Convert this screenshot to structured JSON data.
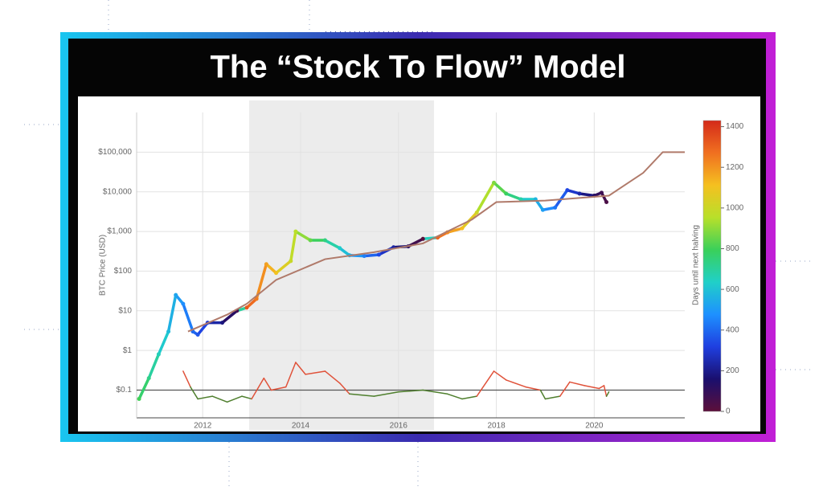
{
  "chart_data": {
    "type": "line",
    "title": "The “Stock To Flow” Model",
    "y_label": "BTC Price (USD)",
    "colorbar_label": "Days until next halving",
    "y_scale": "log",
    "grid": true,
    "xlim": [
      2010.65,
      2021.85
    ],
    "xticks": [
      2012,
      2014,
      2016,
      2018,
      2020
    ],
    "ylim": [
      0.02,
      1000000
    ],
    "yticks": [
      {
        "value": 0.1,
        "label": "$0.1"
      },
      {
        "value": 1,
        "label": "$1"
      },
      {
        "value": 10,
        "label": "$10"
      },
      {
        "value": 100,
        "label": "$100"
      },
      {
        "value": 1000,
        "label": "$1,000"
      },
      {
        "value": 10000,
        "label": "$10,000"
      },
      {
        "value": 100000,
        "label": "$100,000"
      }
    ],
    "zlim": [
      0,
      1430
    ],
    "zticks": [
      0,
      200,
      400,
      600,
      800,
      1000,
      1200,
      1400
    ],
    "colorscale": [
      "#5c0f3a",
      "#1a0f6e",
      "#1f3fe0",
      "#1e90ff",
      "#20d0c8",
      "#3ad05a",
      "#b8e02a",
      "#f5c020",
      "#f07020",
      "#d42a1a"
    ],
    "hline": 0.1,
    "hline_color": "#555555",
    "series": [
      {
        "x": [
          2010.7,
          2010.9,
          2011.1,
          2011.3,
          2011.45,
          2011.6,
          2011.8,
          2011.9,
          2012.1,
          2012.4,
          2012.7,
          2012.9,
          2013.1,
          2013.3,
          2013.5,
          2013.8,
          2013.9,
          2014.2,
          2014.5,
          2014.8,
          2015.0,
          2015.3,
          2015.6,
          2015.9,
          2016.2,
          2016.5,
          2016.8,
          2017.0,
          2017.3,
          2017.6,
          2017.95,
          2018.2,
          2018.5,
          2018.8,
          2018.95,
          2019.2,
          2019.45,
          2019.7,
          2020.0,
          2020.15,
          2020.25
        ],
        "values": [
          0.06,
          0.2,
          0.8,
          3,
          25,
          15,
          3,
          2.5,
          5,
          5,
          10,
          12,
          20,
          150,
          90,
          180,
          1000,
          600,
          600,
          380,
          250,
          240,
          260,
          400,
          420,
          650,
          700,
          950,
          1200,
          3000,
          17000,
          9000,
          6500,
          6500,
          3500,
          4000,
          11000,
          9000,
          8000,
          9500,
          5500
        ],
        "color_values": [
          803,
          730,
          657,
          584,
          529,
          475,
          402,
          365,
          292,
          183,
          73,
          1321,
          1248,
          1175,
          1102,
          993,
          956,
          847,
          737,
          628,
          555,
          445,
          336,
          226,
          117,
          7,
          1299,
          1226,
          1117,
          1007,
          880,
          788,
          679,
          569,
          515,
          423,
          332,
          241,
          131,
          77,
          40
        ]
      },
      {
        "color": "#b07a6a",
        "x": [
          2011.7,
          2012.5,
          2012.9,
          2013.5,
          2014.5,
          2015.5,
          2016.5,
          2017.5,
          2018.0,
          2019.0,
          2020.3,
          2021.0,
          2021.4,
          2021.85
        ],
        "values": [
          3,
          8,
          15,
          60,
          200,
          300,
          500,
          2000,
          5500,
          6000,
          8000,
          30000,
          100000,
          100000
        ]
      },
      {
        "color_above": "#e0523a",
        "color_below": "#4f7f2e",
        "x": [
          2011.6,
          2011.75,
          2011.9,
          2012.2,
          2012.5,
          2012.8,
          2013.0,
          2013.25,
          2013.4,
          2013.7,
          2013.9,
          2014.1,
          2014.5,
          2014.8,
          2015.0,
          2015.5,
          2016.0,
          2016.5,
          2017.0,
          2017.3,
          2017.6,
          2017.95,
          2018.2,
          2018.6,
          2018.9,
          2019.0,
          2019.3,
          2019.5,
          2019.8,
          2020.1,
          2020.2,
          2020.25,
          2020.3
        ],
        "values": [
          0.3,
          0.12,
          0.06,
          0.07,
          0.05,
          0.07,
          0.06,
          0.2,
          0.1,
          0.12,
          0.5,
          0.25,
          0.3,
          0.15,
          0.08,
          0.07,
          0.09,
          0.1,
          0.08,
          0.06,
          0.07,
          0.3,
          0.18,
          0.12,
          0.1,
          0.06,
          0.07,
          0.16,
          0.13,
          0.11,
          0.13,
          0.07,
          0.09
        ]
      }
    ]
  }
}
